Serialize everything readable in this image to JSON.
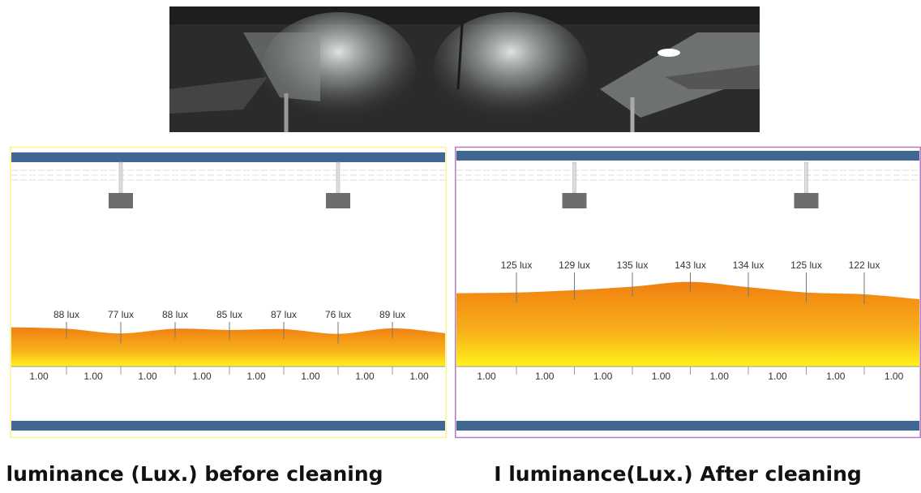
{
  "panels": [
    {
      "lux_labels": [
        "88 lux",
        "77 lux",
        "88 lux",
        "85 lux",
        "87 lux",
        "76 lux",
        "89 lux"
      ],
      "distance_labels": [
        "1.00",
        "1.00",
        "1.00",
        "1.00",
        "1.00",
        "1.00",
        "1.00",
        "1.00"
      ],
      "caption": "I luminance (Lux.) before cleaning"
    },
    {
      "lux_labels": [
        "125 lux",
        "129 lux",
        "135 lux",
        "143 lux",
        "134 lux",
        "125 lux",
        "122 lux"
      ],
      "distance_labels": [
        "1.00",
        "1.00",
        "1.00",
        "1.00",
        "1.00",
        "1.00",
        "1.00",
        "1.00"
      ],
      "caption": "I luminance(Lux.) After cleaning"
    }
  ]
}
